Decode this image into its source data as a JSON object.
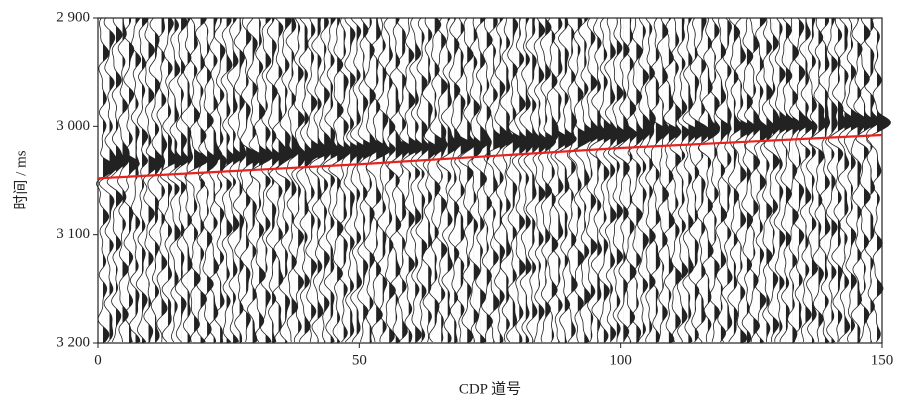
{
  "chart_data": {
    "type": "line",
    "xlabel": "CDP 道号",
    "ylabel": "时间 / ms",
    "xlim": [
      0,
      150
    ],
    "xticks": [
      0,
      50,
      100,
      150
    ],
    "ylim": [
      2900,
      3200
    ],
    "y_inverted": true,
    "yticks": [
      {
        "value": 2900,
        "label": "2 900"
      },
      {
        "value": 3000,
        "label": "3 000"
      },
      {
        "value": 3100,
        "label": "3 100"
      },
      {
        "value": 3200,
        "label": "3 200"
      }
    ],
    "x": [
      0,
      50,
      100,
      150
    ],
    "series": [
      {
        "color": "#e8231e",
        "values": [
          3048,
          3035,
          3020,
          3008
        ]
      }
    ]
  }
}
